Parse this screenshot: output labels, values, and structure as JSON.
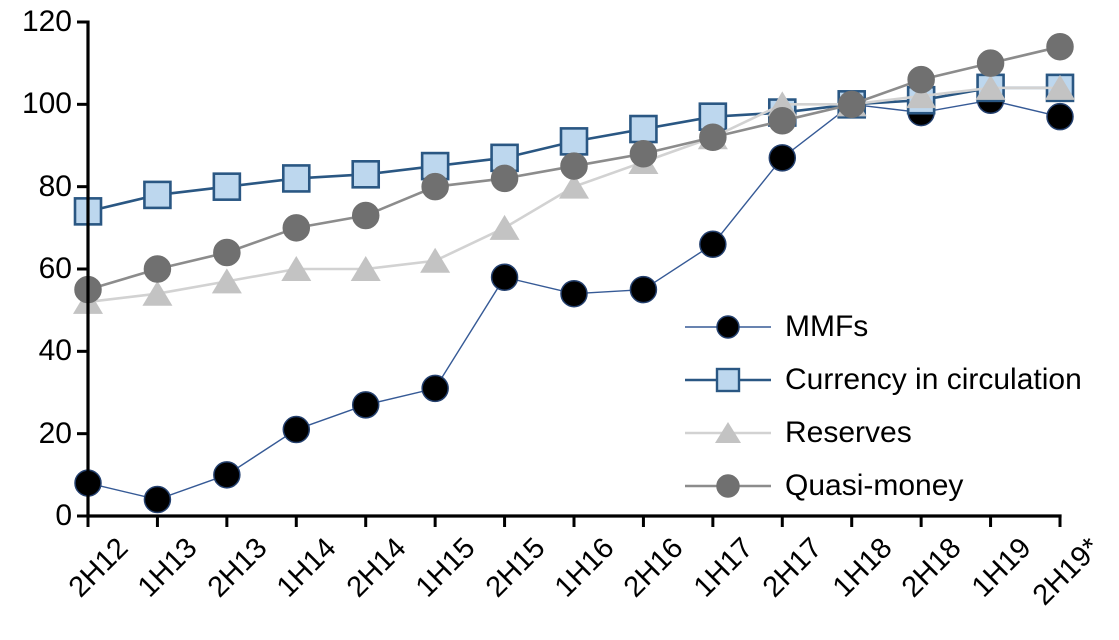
{
  "chart_data": {
    "type": "line",
    "title": "",
    "xlabel": "",
    "ylabel": "",
    "ylim": [
      0,
      120
    ],
    "y_ticks": [
      0,
      20,
      40,
      60,
      80,
      100,
      120
    ],
    "grid": false,
    "legend_position": "inside-right",
    "categories": [
      "2H12",
      "1H13",
      "2H13",
      "1H14",
      "2H14",
      "1H15",
      "2H15",
      "1H16",
      "2H16",
      "1H17",
      "2H17",
      "1H18",
      "2H18",
      "1H19",
      "2H19*"
    ],
    "series": [
      {
        "name": "MMFs",
        "marker": "circle",
        "marker_color": "#000000",
        "marker_edge": "#24406E",
        "line_color": "#365A96",
        "line_width": 1.4,
        "values": [
          8,
          4,
          10,
          21,
          27,
          31,
          58,
          54,
          55,
          66,
          87,
          100,
          98,
          101,
          97
        ]
      },
      {
        "name": "Currency in circulation",
        "marker": "square",
        "marker_color": "#BDD7EE",
        "marker_edge": "#2A5783",
        "line_color": "#2A5783",
        "line_width": 2.6,
        "values": [
          74,
          78,
          80,
          82,
          83,
          85,
          87,
          91,
          94,
          97,
          98,
          100,
          101,
          104,
          104
        ]
      },
      {
        "name": "Reserves",
        "marker": "triangle",
        "marker_color": "#C3C3C3",
        "marker_edge": "#C3C3C3",
        "line_color": "#D2D2D2",
        "line_width": 2.6,
        "values": [
          52,
          54,
          57,
          60,
          60,
          62,
          70,
          80,
          86,
          92,
          100,
          100,
          102,
          104,
          104
        ]
      },
      {
        "name": "Quasi-money",
        "marker": "circle",
        "marker_color": "#707070",
        "marker_edge": "#707070",
        "line_color": "#8C8C8C",
        "line_width": 2.6,
        "values": [
          55,
          60,
          64,
          70,
          73,
          80,
          82,
          85,
          88,
          92,
          96,
          100,
          106,
          110,
          114
        ]
      }
    ],
    "axis_color": "#000000"
  }
}
